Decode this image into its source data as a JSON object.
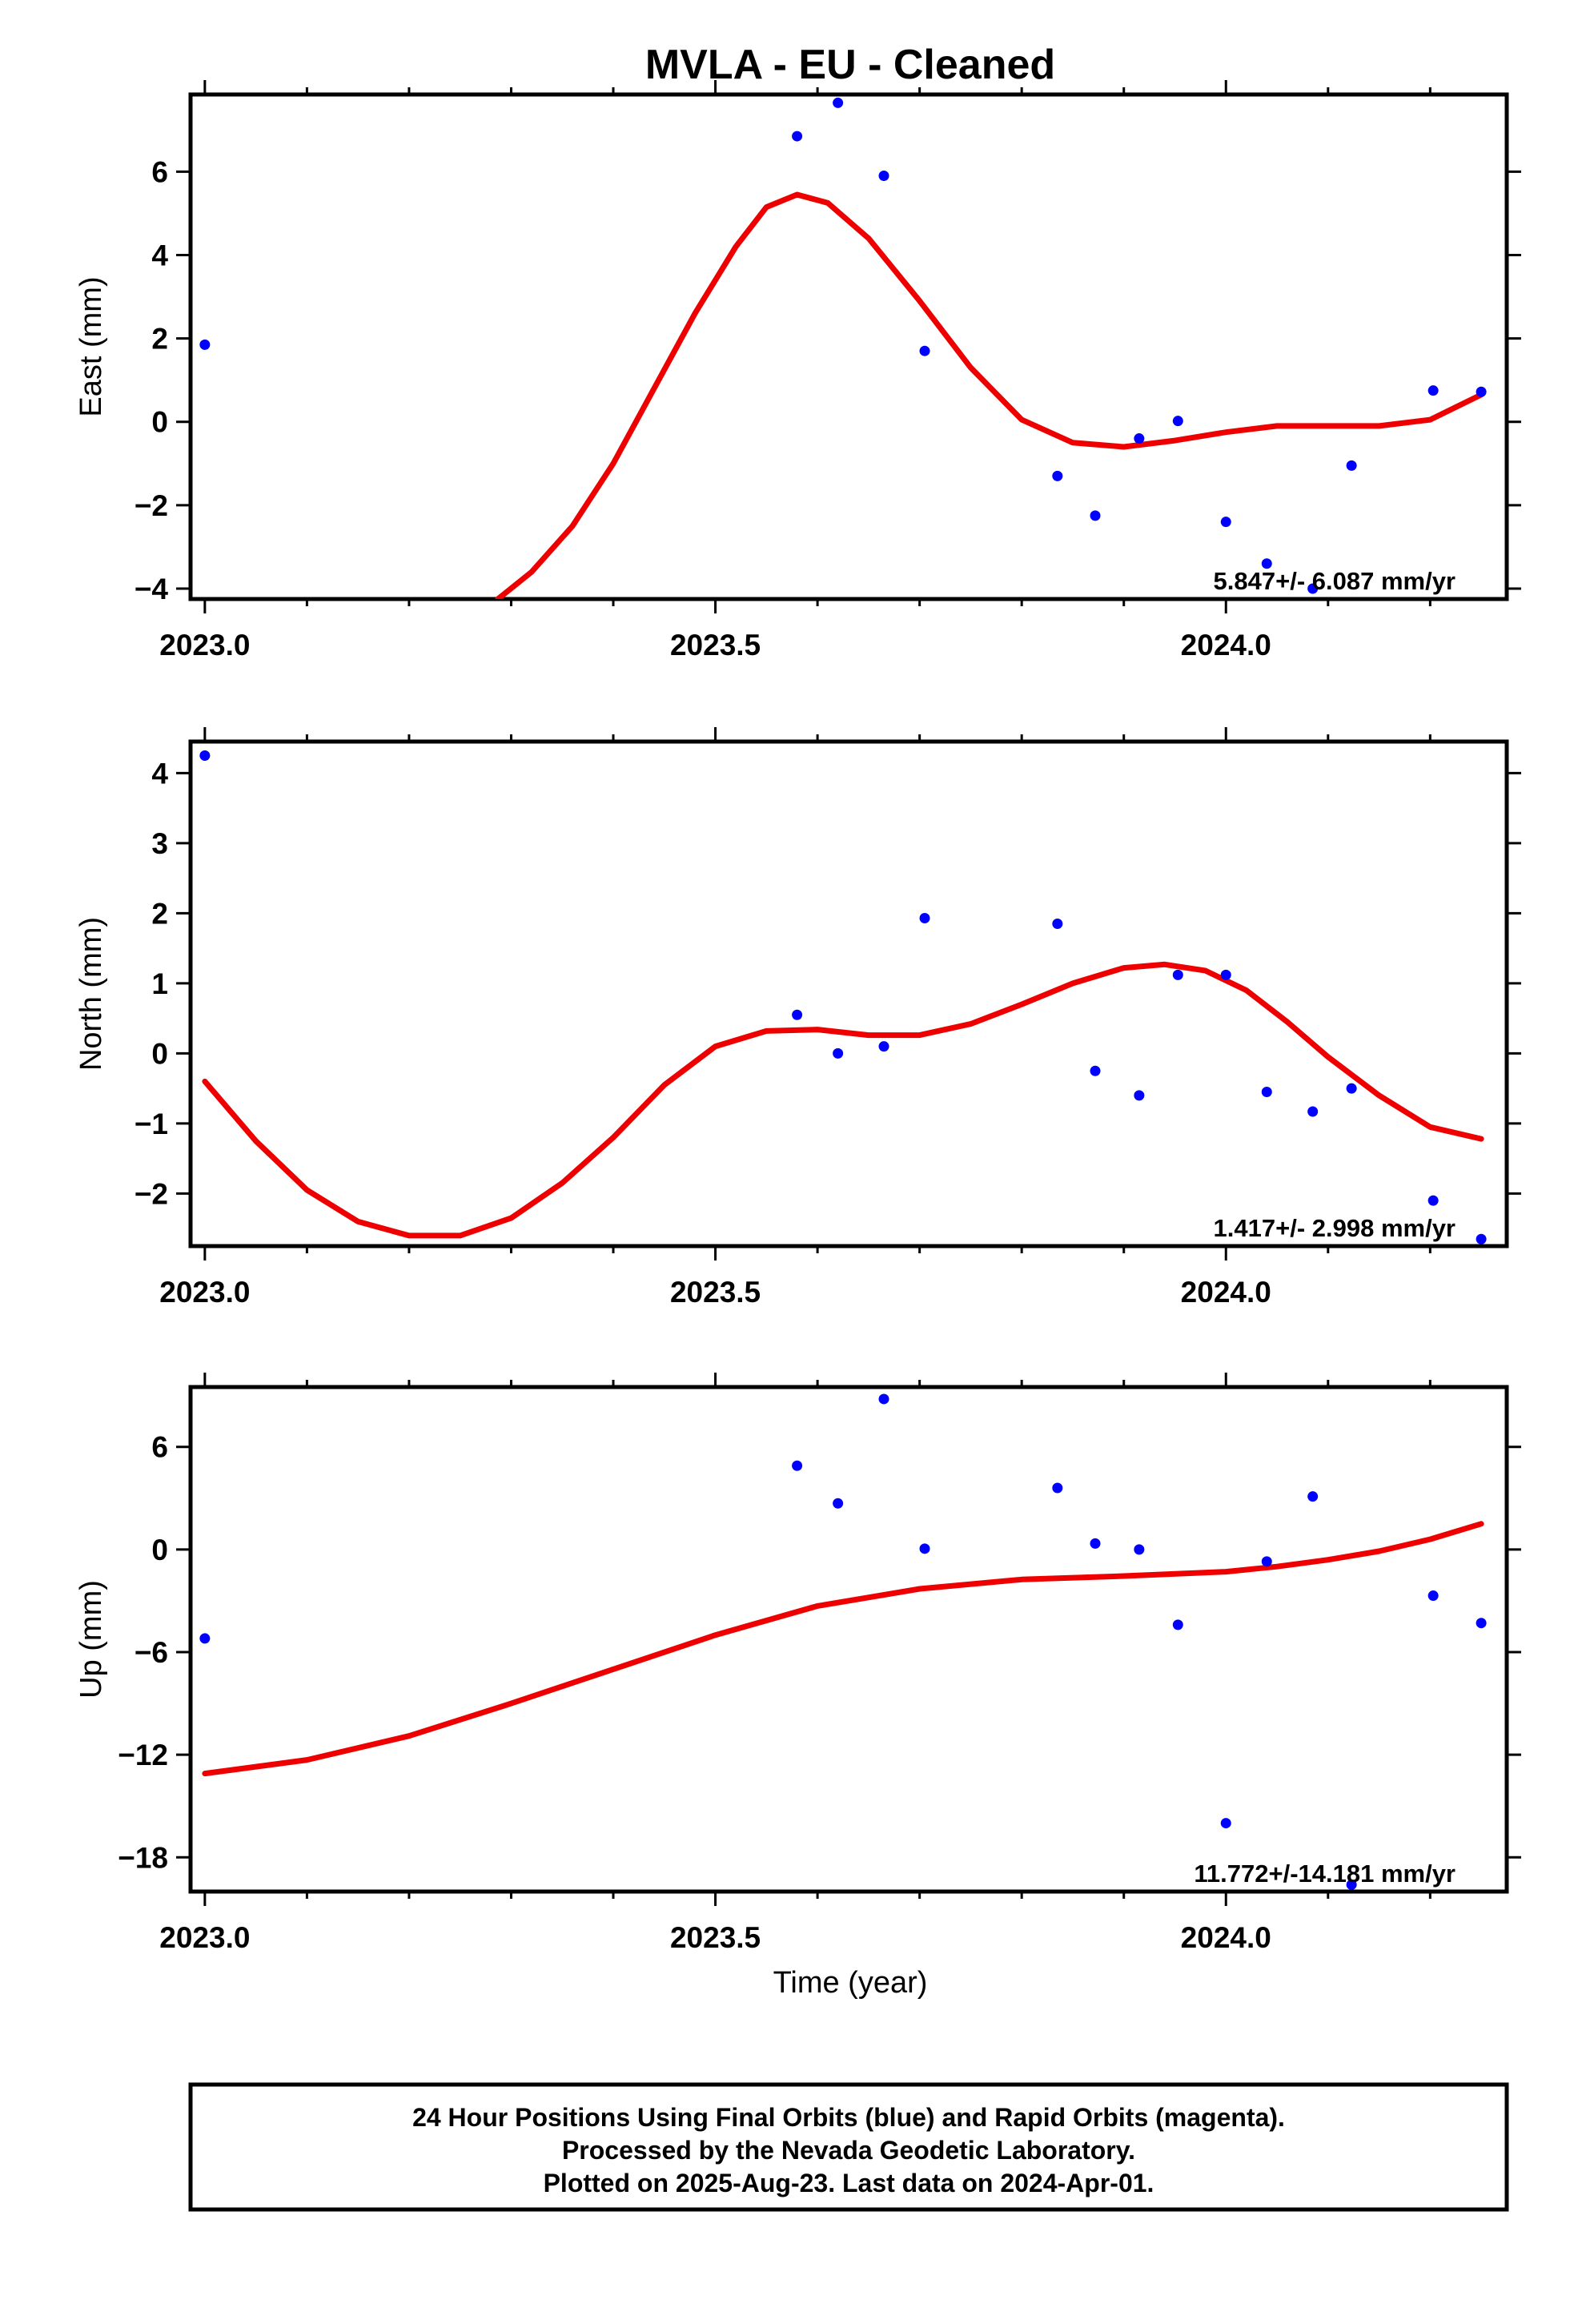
{
  "title": "MVLA  - EU - Cleaned",
  "xlabel": "Time (year)",
  "footer": {
    "line1": "24 Hour Positions Using Final Orbits (blue) and Rapid Orbits (magenta).",
    "line2": "Processed by the Nevada Geodetic Laboratory.",
    "line3": "Plotted on 2025-Aug-23. Last data on 2024-Apr-01."
  },
  "colors": {
    "points": "#0000ff",
    "fit": "#ee0000",
    "frame": "#000000"
  },
  "chart_data": [
    {
      "type": "scatter",
      "ylabel": "East (mm)",
      "rate": "5.847+/- 6.087 mm/yr",
      "xlim": [
        2022.986,
        2024.275
      ],
      "ylim": [
        -4.25,
        7.85
      ],
      "xticks": [
        2023.0,
        2023.5,
        2024.0
      ],
      "yticks": [
        -4,
        -2,
        0,
        2,
        4,
        6
      ],
      "x_minor_step": 0.1,
      "grid": false,
      "points": [
        [
          2023.0,
          1.85
        ],
        [
          2023.58,
          6.85
        ],
        [
          2023.62,
          7.65
        ],
        [
          2023.665,
          5.9
        ],
        [
          2023.705,
          1.7
        ],
        [
          2023.835,
          -1.3
        ],
        [
          2023.872,
          -2.25
        ],
        [
          2023.915,
          -0.4
        ],
        [
          2023.953,
          0.02
        ],
        [
          2024.0,
          -2.4
        ],
        [
          2024.04,
          -3.4
        ],
        [
          2024.085,
          -4.0
        ],
        [
          2024.123,
          -1.05
        ],
        [
          2024.203,
          0.75
        ],
        [
          2024.25,
          0.72
        ]
      ],
      "fit_curve": [
        [
          2023.287,
          -4.25
        ],
        [
          2023.32,
          -3.6
        ],
        [
          2023.36,
          -2.5
        ],
        [
          2023.4,
          -1.0
        ],
        [
          2023.44,
          0.8
        ],
        [
          2023.48,
          2.6
        ],
        [
          2023.52,
          4.2
        ],
        [
          2023.55,
          5.15
        ],
        [
          2023.58,
          5.45
        ],
        [
          2023.61,
          5.25
        ],
        [
          2023.65,
          4.4
        ],
        [
          2023.7,
          2.9
        ],
        [
          2023.75,
          1.3
        ],
        [
          2023.8,
          0.05
        ],
        [
          2023.85,
          -0.5
        ],
        [
          2023.9,
          -0.6
        ],
        [
          2023.95,
          -0.45
        ],
        [
          2024.0,
          -0.25
        ],
        [
          2024.05,
          -0.1
        ],
        [
          2024.1,
          -0.1
        ],
        [
          2024.15,
          -0.1
        ],
        [
          2024.2,
          0.05
        ],
        [
          2024.25,
          0.65
        ]
      ]
    },
    {
      "type": "scatter",
      "ylabel": "North (mm)",
      "rate": "1.417+/- 2.998 mm/yr",
      "xlim": [
        2022.986,
        2024.275
      ],
      "ylim": [
        -2.75,
        4.45
      ],
      "xticks": [
        2023.0,
        2023.5,
        2024.0
      ],
      "yticks": [
        -2,
        -1,
        0,
        1,
        2,
        3,
        4
      ],
      "x_minor_step": 0.1,
      "grid": false,
      "points": [
        [
          2023.0,
          4.25
        ],
        [
          2023.58,
          0.55
        ],
        [
          2023.62,
          0.0
        ],
        [
          2023.665,
          0.1
        ],
        [
          2023.705,
          1.93
        ],
        [
          2023.835,
          1.85
        ],
        [
          2023.872,
          -0.25
        ],
        [
          2023.915,
          -0.6
        ],
        [
          2023.953,
          1.12
        ],
        [
          2024.0,
          1.12
        ],
        [
          2024.04,
          -0.55
        ],
        [
          2024.085,
          -0.83
        ],
        [
          2024.123,
          -0.5
        ],
        [
          2024.203,
          -2.1
        ],
        [
          2024.25,
          -2.65
        ]
      ],
      "fit_curve": [
        [
          2023.0,
          -0.4
        ],
        [
          2023.05,
          -1.25
        ],
        [
          2023.1,
          -1.95
        ],
        [
          2023.15,
          -2.4
        ],
        [
          2023.2,
          -2.6
        ],
        [
          2023.25,
          -2.6
        ],
        [
          2023.3,
          -2.35
        ],
        [
          2023.35,
          -1.85
        ],
        [
          2023.4,
          -1.2
        ],
        [
          2023.45,
          -0.45
        ],
        [
          2023.5,
          0.1
        ],
        [
          2023.55,
          0.32
        ],
        [
          2023.6,
          0.34
        ],
        [
          2023.65,
          0.26
        ],
        [
          2023.7,
          0.26
        ],
        [
          2023.75,
          0.42
        ],
        [
          2023.8,
          0.7
        ],
        [
          2023.85,
          1.0
        ],
        [
          2023.9,
          1.22
        ],
        [
          2023.94,
          1.27
        ],
        [
          2023.98,
          1.18
        ],
        [
          2024.02,
          0.9
        ],
        [
          2024.06,
          0.45
        ],
        [
          2024.1,
          -0.05
        ],
        [
          2024.15,
          -0.6
        ],
        [
          2024.2,
          -1.05
        ],
        [
          2024.25,
          -1.22
        ]
      ]
    },
    {
      "type": "scatter",
      "ylabel": "Up (mm)",
      "rate": "11.772+/-14.181 mm/yr",
      "xlim": [
        2022.986,
        2024.275
      ],
      "ylim": [
        -20.0,
        9.5
      ],
      "xticks": [
        2023.0,
        2023.5,
        2024.0
      ],
      "yticks": [
        -18,
        -12,
        -6,
        0,
        6
      ],
      "x_minor_step": 0.1,
      "grid": false,
      "points": [
        [
          2023.0,
          -5.2
        ],
        [
          2023.58,
          4.9
        ],
        [
          2023.62,
          2.7
        ],
        [
          2023.665,
          8.8
        ],
        [
          2023.705,
          0.05
        ],
        [
          2023.835,
          3.6
        ],
        [
          2023.872,
          0.35
        ],
        [
          2023.915,
          0.0
        ],
        [
          2023.953,
          -4.4
        ],
        [
          2024.0,
          -16.0
        ],
        [
          2024.04,
          -0.7
        ],
        [
          2024.085,
          3.1
        ],
        [
          2024.123,
          -19.6
        ],
        [
          2024.203,
          -2.7
        ],
        [
          2024.25,
          -4.3
        ]
      ],
      "fit_curve": [
        [
          2023.0,
          -13.1
        ],
        [
          2023.1,
          -12.3
        ],
        [
          2023.2,
          -10.9
        ],
        [
          2023.3,
          -9.0
        ],
        [
          2023.4,
          -7.0
        ],
        [
          2023.5,
          -5.0
        ],
        [
          2023.6,
          -3.3
        ],
        [
          2023.7,
          -2.3
        ],
        [
          2023.8,
          -1.75
        ],
        [
          2023.9,
          -1.55
        ],
        [
          2024.0,
          -1.3
        ],
        [
          2024.05,
          -1.0
        ],
        [
          2024.1,
          -0.6
        ],
        [
          2024.15,
          -0.1
        ],
        [
          2024.2,
          0.6
        ],
        [
          2024.25,
          1.5
        ]
      ]
    }
  ]
}
